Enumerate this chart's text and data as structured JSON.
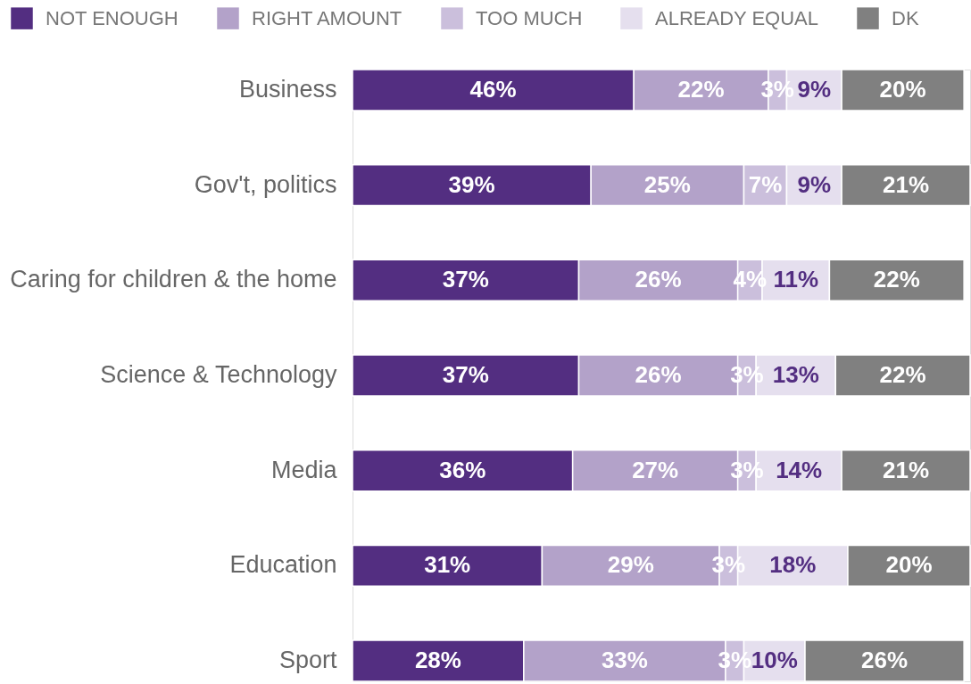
{
  "chart_data": {
    "type": "bar",
    "orientation": "horizontal",
    "stacked": true,
    "categories": [
      "Business",
      "Gov't, politics",
      "Caring for children & the home",
      "Science & Technology",
      "Media",
      "Education",
      "Sport"
    ],
    "series": [
      {
        "name": "NOT ENOUGH",
        "color": "#532e81",
        "values": [
          46,
          39,
          37,
          37,
          36,
          31,
          28
        ],
        "value_labels": [
          "46%",
          "39%",
          "37%",
          "37%",
          "36%",
          "31%",
          "28%"
        ]
      },
      {
        "name": "RIGHT AMOUNT",
        "color": "#b3a2c9",
        "values": [
          22,
          25,
          26,
          26,
          27,
          29,
          33
        ],
        "value_labels": [
          "22%",
          "25%",
          "26%",
          "26%",
          "27%",
          "29%",
          "33%"
        ]
      },
      {
        "name": "TOO MUCH",
        "color": "#cbbfdc",
        "values": [
          3,
          7,
          4,
          3,
          3,
          3,
          3
        ],
        "value_labels": [
          "3%",
          "7%",
          "4%",
          "3%",
          "3%",
          "3%",
          "3%"
        ]
      },
      {
        "name": "ALREADY EQUAL",
        "color": "#e5dfee",
        "values": [
          9,
          9,
          11,
          13,
          14,
          18,
          10
        ],
        "value_labels": [
          "9%",
          "9%",
          "11%",
          "13%",
          "14%",
          "18%",
          "10%"
        ]
      },
      {
        "name": "DK",
        "color": "#808080",
        "values": [
          20,
          21,
          22,
          22,
          21,
          20,
          26
        ],
        "value_labels": [
          "20%",
          "21%",
          "22%",
          "22%",
          "21%",
          "20%",
          "26%"
        ]
      }
    ],
    "legend": "top",
    "tick_labels": "y",
    "grid": false
  }
}
